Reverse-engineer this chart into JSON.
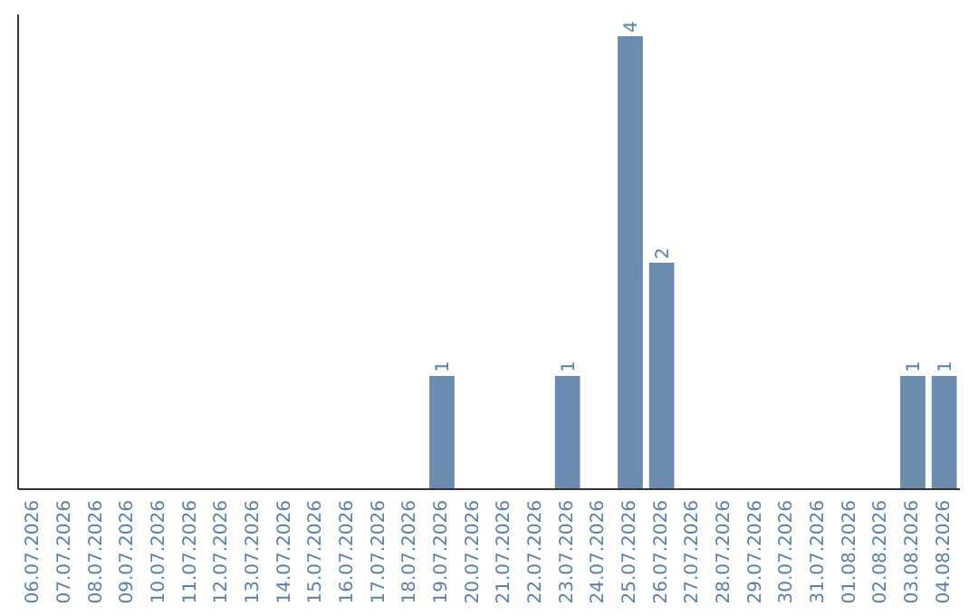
{
  "chart_data": {
    "type": "bar",
    "categories": [
      "06.07.2026",
      "07.07.2026",
      "08.07.2026",
      "09.07.2026",
      "10.07.2026",
      "11.07.2026",
      "12.07.2026",
      "13.07.2026",
      "14.07.2026",
      "15.07.2026",
      "16.07.2026",
      "17.07.2026",
      "18.07.2026",
      "19.07.2026",
      "20.07.2026",
      "21.07.2026",
      "22.07.2026",
      "23.07.2026",
      "24.07.2026",
      "25.07.2026",
      "26.07.2026",
      "27.07.2026",
      "28.07.2026",
      "29.07.2026",
      "30.07.2026",
      "31.07.2026",
      "01.08.2026",
      "02.08.2026",
      "03.08.2026",
      "04.08.2026"
    ],
    "values": [
      null,
      null,
      null,
      null,
      null,
      null,
      null,
      null,
      null,
      null,
      null,
      null,
      null,
      1,
      null,
      null,
      null,
      1,
      null,
      4,
      2,
      null,
      null,
      null,
      null,
      null,
      null,
      null,
      1,
      1
    ],
    "value_labels": [
      null,
      null,
      null,
      null,
      null,
      null,
      null,
      null,
      null,
      null,
      null,
      null,
      null,
      "1",
      null,
      null,
      null,
      "1",
      null,
      "4",
      "2",
      null,
      null,
      null,
      null,
      null,
      null,
      null,
      "1",
      "1"
    ],
    "color": "#6a8caf",
    "tick_labels": "x"
  }
}
